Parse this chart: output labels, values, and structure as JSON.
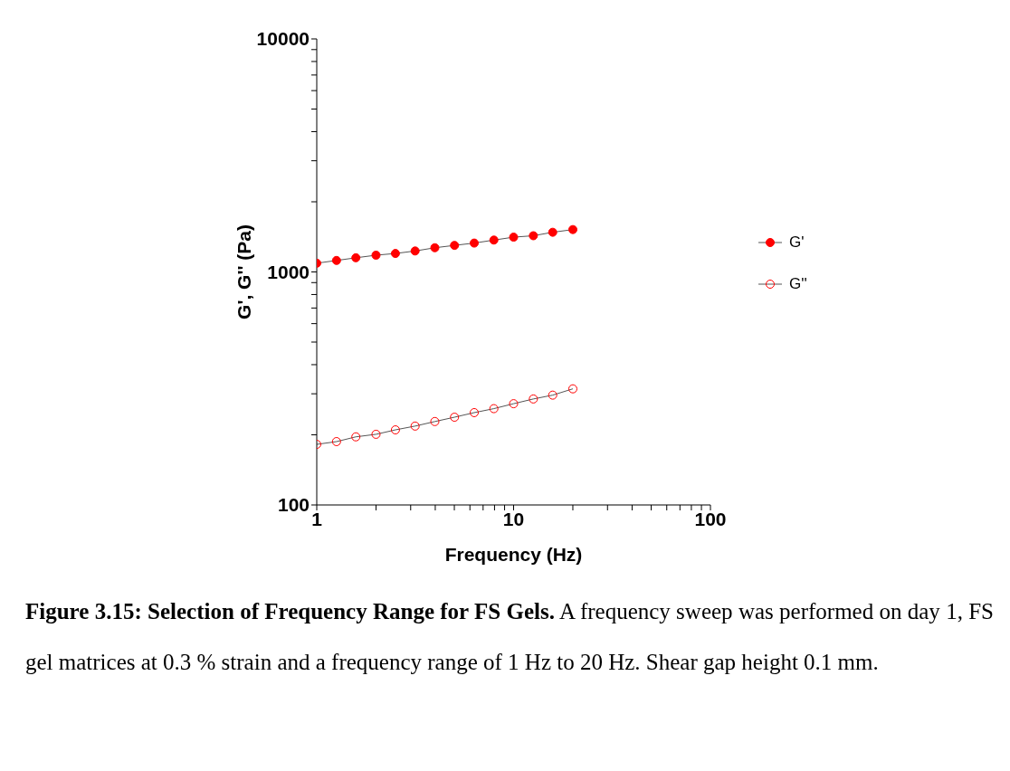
{
  "chart_data": {
    "type": "line",
    "xlabel": "Frequency (Hz)",
    "ylabel": "G', G'' (Pa)",
    "x": [
      1,
      1.26,
      1.58,
      2,
      2.51,
      3.16,
      3.98,
      5.01,
      6.31,
      7.94,
      10,
      12.6,
      15.8,
      20
    ],
    "series": [
      {
        "name": "G'",
        "color": "#ff0000",
        "marker": "circle",
        "values": [
          1090,
          1120,
          1150,
          1180,
          1200,
          1230,
          1270,
          1300,
          1330,
          1370,
          1410,
          1430,
          1480,
          1520
        ]
      },
      {
        "name": "G''",
        "color": "#ff0000",
        "marker": "circle",
        "values": [
          182,
          187,
          196,
          201,
          210,
          218,
          228,
          238,
          249,
          259,
          272,
          285,
          296,
          315
        ]
      }
    ],
    "log": "xy",
    "xlim": [
      1,
      100
    ],
    "ylim": [
      100,
      10000
    ],
    "xticks": [
      1,
      {
        "value": 2,
        "label": null
      },
      {
        "value": 3,
        "label": null
      },
      {
        "value": 4,
        "label": null
      },
      {
        "value": 5,
        "label": null
      },
      {
        "value": 6,
        "label": null
      },
      {
        "value": 7,
        "label": null
      },
      {
        "value": 8,
        "label": null
      },
      {
        "value": 9,
        "label": null
      },
      10,
      {
        "value": 20,
        "label": null
      },
      {
        "value": 30,
        "label": null
      },
      {
        "value": 40,
        "label": null
      },
      {
        "value": 50,
        "label": null
      },
      {
        "value": 60,
        "label": null
      },
      {
        "value": 70,
        "label": null
      },
      {
        "value": 80,
        "label": null
      },
      {
        "value": 90,
        "label": null
      },
      100
    ],
    "yticks": [
      100,
      {
        "value": 200,
        "label": null
      },
      {
        "value": 300,
        "label": null
      },
      {
        "value": 400,
        "label": null
      },
      {
        "value": 500,
        "label": null
      },
      {
        "value": 600,
        "label": null
      },
      {
        "value": 700,
        "label": null
      },
      {
        "value": 800,
        "label": null
      },
      {
        "value": 900,
        "label": null
      },
      1000,
      {
        "value": 2000,
        "label": null
      },
      {
        "value": 3000,
        "label": null
      },
      {
        "value": 4000,
        "label": null
      },
      {
        "value": 5000,
        "label": null
      },
      {
        "value": 6000,
        "label": null
      },
      {
        "value": 7000,
        "label": null
      },
      {
        "value": 8000,
        "label": null
      },
      {
        "value": 9000,
        "label": null
      },
      10000
    ],
    "grid": false,
    "legend": "right",
    "line_style": "solid",
    "annotations": [
      "Figure 3.15: Selection of Frequency Range for FS Gels.",
      "A frequency sweep was performed on day 1, FS gel matrices at 0.3 % strain and a frequency range of 1 Hz to 20 Hz.  Shear gap height 0.1 mm."
    ]
  }
}
